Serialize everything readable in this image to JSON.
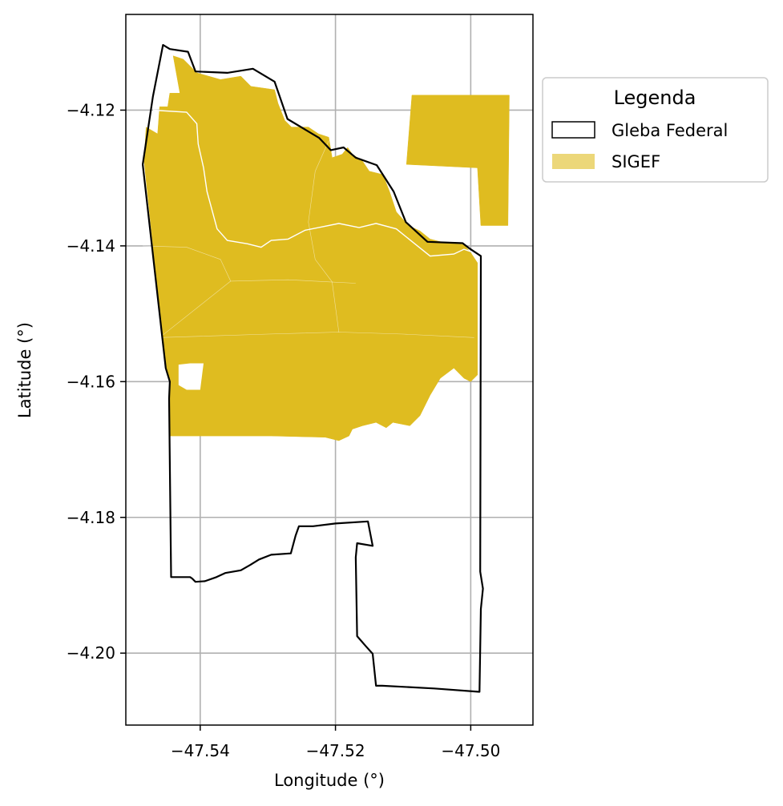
{
  "chart_data": {
    "type": "map",
    "xlabel": "Longitude (°)",
    "ylabel": "Latitude (°)",
    "xlim": [
      -47.551,
      -47.4908
    ],
    "ylim": [
      -4.2106,
      -4.1059
    ],
    "x_ticks": [
      {
        "value": -47.54,
        "label": "−47.54"
      },
      {
        "value": -47.52,
        "label": "−47.52"
      },
      {
        "value": -47.5,
        "label": "−47.50"
      }
    ],
    "y_ticks": [
      {
        "value": -4.12,
        "label": "−4.12"
      },
      {
        "value": -4.14,
        "label": "−4.14"
      },
      {
        "value": -4.16,
        "label": "−4.16"
      },
      {
        "value": -4.18,
        "label": "−4.18"
      },
      {
        "value": -4.2,
        "label": "−4.20"
      }
    ],
    "grid": true,
    "legend": {
      "title": "Legenda",
      "placement": "outside-right-top",
      "entries": [
        {
          "label": "Gleba Federal",
          "style": "outline",
          "color": "#000000"
        },
        {
          "label": "SIGEF",
          "style": "fill",
          "color": "#dfbc20"
        }
      ]
    },
    "layers": {
      "gleba_federal": {
        "name": "Gleba Federal",
        "color": "#000000",
        "polygons": [
          [
            [
              -47.5455,
              -4.1104
            ],
            [
              -47.5445,
              -4.111
            ],
            [
              -47.5418,
              -4.1114
            ],
            [
              -47.5407,
              -4.1143
            ],
            [
              -47.536,
              -4.1145
            ],
            [
              -47.5322,
              -4.1139
            ],
            [
              -47.529,
              -4.1158
            ],
            [
              -47.5271,
              -4.1213
            ],
            [
              -47.5224,
              -4.1241
            ],
            [
              -47.5207,
              -4.1259
            ],
            [
              -47.5188,
              -4.1255
            ],
            [
              -47.517,
              -4.127
            ],
            [
              -47.5139,
              -4.1281
            ],
            [
              -47.5114,
              -4.132
            ],
            [
              -47.5096,
              -4.1365
            ],
            [
              -47.5064,
              -4.1394
            ],
            [
              -47.5012,
              -4.1396
            ],
            [
              -47.5003,
              -4.1403
            ],
            [
              -47.4985,
              -4.1415
            ],
            [
              -47.4986,
              -4.188
            ],
            [
              -47.4982,
              -4.1905
            ],
            [
              -47.4985,
              -4.1935
            ],
            [
              -47.4987,
              -4.2057
            ],
            [
              -47.5054,
              -4.2052
            ],
            [
              -47.5131,
              -4.2048
            ],
            [
              -47.514,
              -4.2048
            ],
            [
              -47.5145,
              -4.2001
            ],
            [
              -47.5155,
              -4.199
            ],
            [
              -47.5162,
              -4.1982
            ],
            [
              -47.5168,
              -4.1975
            ],
            [
              -47.517,
              -4.1859
            ],
            [
              -47.5168,
              -4.1838
            ],
            [
              -47.5145,
              -4.1842
            ],
            [
              -47.5152,
              -4.1806
            ],
            [
              -47.52,
              -4.1809
            ],
            [
              -47.5233,
              -4.1813
            ],
            [
              -47.5244,
              -4.1813
            ],
            [
              -47.5254,
              -4.1813
            ],
            [
              -47.5259,
              -4.1827
            ],
            [
              -47.5266,
              -4.1853
            ],
            [
              -47.5295,
              -4.1855
            ],
            [
              -47.5313,
              -4.1862
            ],
            [
              -47.5326,
              -4.187
            ],
            [
              -47.534,
              -4.1878
            ],
            [
              -47.5363,
              -4.1882
            ],
            [
              -47.5376,
              -4.1888
            ],
            [
              -47.5393,
              -4.1894
            ],
            [
              -47.5407,
              -4.1895
            ],
            [
              -47.5412,
              -4.189
            ],
            [
              -47.5415,
              -4.1888
            ],
            [
              -47.5443,
              -4.1888
            ],
            [
              -47.5446,
              -4.1625
            ],
            [
              -47.5445,
              -4.16
            ],
            [
              -47.5451,
              -4.158
            ],
            [
              -47.5485,
              -4.128
            ],
            [
              -47.547,
              -4.118
            ],
            [
              -47.5455,
              -4.1104
            ]
          ]
        ]
      },
      "sigef": {
        "name": "SIGEF",
        "color": "#dfbc20",
        "parcels": [
          [
            [
              -47.5483,
              -4.1275
            ],
            [
              -47.548,
              -4.1225
            ],
            [
              -47.5463,
              -4.1235
            ],
            [
              -47.546,
              -4.1195
            ],
            [
              -47.5448,
              -4.1195
            ],
            [
              -47.5445,
              -4.1175
            ],
            [
              -47.543,
              -4.1175
            ],
            [
              -47.544,
              -4.112
            ],
            [
              -47.5425,
              -4.1125
            ],
            [
              -47.5415,
              -4.1135
            ],
            [
              -47.5405,
              -4.1145
            ],
            [
              -47.537,
              -4.1155
            ],
            [
              -47.534,
              -4.115
            ],
            [
              -47.5325,
              -4.1165
            ],
            [
              -47.529,
              -4.117
            ],
            [
              -47.5285,
              -4.119
            ],
            [
              -47.5275,
              -4.1215
            ],
            [
              -47.5265,
              -4.1225
            ],
            [
              -47.524,
              -4.1225
            ],
            [
              -47.5225,
              -4.1235
            ],
            [
              -47.521,
              -4.124
            ],
            [
              -47.5205,
              -4.127
            ],
            [
              -47.519,
              -4.1265
            ],
            [
              -47.5182,
              -4.1255
            ],
            [
              -47.5175,
              -4.1265
            ],
            [
              -47.516,
              -4.1275
            ],
            [
              -47.515,
              -4.129
            ],
            [
              -47.513,
              -4.1295
            ],
            [
              -47.512,
              -4.132
            ],
            [
              -47.511,
              -4.135
            ],
            [
              -47.5092,
              -4.137
            ],
            [
              -47.5075,
              -4.1378
            ],
            [
              -47.506,
              -4.139
            ],
            [
              -47.504,
              -4.1395
            ],
            [
              -47.501,
              -4.1398
            ],
            [
              -47.5,
              -4.141
            ],
            [
              -47.499,
              -4.1425
            ],
            [
              -47.499,
              -4.155
            ],
            [
              -47.499,
              -4.159
            ],
            [
              -47.5,
              -4.16
            ],
            [
              -47.501,
              -4.1595
            ],
            [
              -47.5025,
              -4.158
            ],
            [
              -47.5045,
              -4.1595
            ],
            [
              -47.506,
              -4.162
            ],
            [
              -47.5075,
              -4.165
            ],
            [
              -47.509,
              -4.1665
            ],
            [
              -47.5115,
              -4.166
            ],
            [
              -47.5125,
              -4.1668
            ],
            [
              -47.514,
              -4.166
            ],
            [
              -47.516,
              -4.1665
            ],
            [
              -47.5175,
              -4.167
            ],
            [
              -47.518,
              -4.168
            ],
            [
              -47.5195,
              -4.1687
            ],
            [
              -47.5215,
              -4.1682
            ],
            [
              -47.5295,
              -4.168
            ],
            [
              -47.5445,
              -4.168
            ],
            [
              -47.5446,
              -4.1625
            ],
            [
              -47.5445,
              -4.16
            ],
            [
              -47.5451,
              -4.158
            ],
            [
              -47.5483,
              -4.1275
            ]
          ],
          [
            [
              -47.5087,
              -4.1178
            ],
            [
              -47.4943,
              -4.1178
            ],
            [
              -47.4945,
              -4.137
            ],
            [
              -47.4985,
              -4.137
            ],
            [
              -47.499,
              -4.1285
            ],
            [
              -47.5095,
              -4.128
            ],
            [
              -47.5087,
              -4.1178
            ]
          ]
        ],
        "holes": [
          [
            [
              -47.5432,
              -4.1575
            ],
            [
              -47.5415,
              -4.1573
            ],
            [
              -47.54,
              -4.1573
            ],
            [
              -47.5395,
              -4.1573
            ],
            [
              -47.54,
              -4.1612
            ],
            [
              -47.542,
              -4.1612
            ],
            [
              -47.5432,
              -4.1605
            ],
            [
              -47.5432,
              -4.1575
            ]
          ]
        ],
        "internal_boundaries": [
          [
            [
              -47.547,
              -4.12
            ],
            [
              -47.542,
              -4.1203
            ],
            [
              -47.5405,
              -4.122
            ],
            [
              -47.5403,
              -4.125
            ],
            [
              -47.5395,
              -4.1285
            ],
            [
              -47.539,
              -4.132
            ],
            [
              -47.5375,
              -4.1375
            ],
            [
              -47.536,
              -4.1392
            ],
            [
              -47.533,
              -4.1397
            ],
            [
              -47.531,
              -4.1402
            ],
            [
              -47.5295,
              -4.1392
            ],
            [
              -47.527,
              -4.139
            ],
            [
              -47.5245,
              -4.1377
            ],
            [
              -47.522,
              -4.1372
            ],
            [
              -47.5195,
              -4.1367
            ],
            [
              -47.5165,
              -4.1373
            ],
            [
              -47.514,
              -4.1367
            ],
            [
              -47.511,
              -4.1375
            ],
            [
              -47.5085,
              -4.1395
            ],
            [
              -47.506,
              -4.1415
            ],
            [
              -47.5025,
              -4.1412
            ],
            [
              -47.501,
              -4.1405
            ],
            [
              -47.4995,
              -4.141
            ]
          ],
          [
            [
              -47.5485,
              -4.14
            ],
            [
              -47.542,
              -4.1402
            ],
            [
              -47.537,
              -4.142
            ],
            [
              -47.5355,
              -4.1452
            ],
            [
              -47.527,
              -4.145
            ],
            [
              -47.521,
              -4.1453
            ],
            [
              -47.517,
              -4.1455
            ]
          ],
          [
            [
              -47.546,
              -4.1535
            ],
            [
              -47.5355,
              -4.1452
            ]
          ],
          [
            [
              -47.546,
              -4.1535
            ],
            [
              -47.53,
              -4.153
            ],
            [
              -47.5195,
              -4.1527
            ],
            [
              -47.51,
              -4.153
            ],
            [
              -47.4995,
              -4.1535
            ]
          ],
          [
            [
              -47.5195,
              -4.1527
            ],
            [
              -47.5205,
              -4.1453
            ],
            [
              -47.523,
              -4.142
            ],
            [
              -47.524,
              -4.1365
            ],
            [
              -47.523,
              -4.129
            ],
            [
              -47.521,
              -4.1245
            ]
          ]
        ]
      }
    }
  }
}
